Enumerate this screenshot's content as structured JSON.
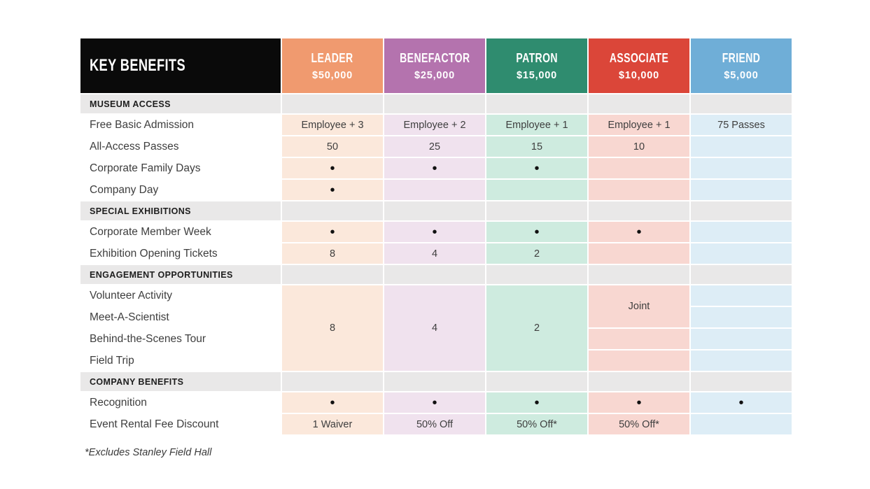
{
  "table": {
    "corner_label": "KEY BENEFITS",
    "corner_bg": "#0a0a0a",
    "section_bg": "#e9e8e8",
    "tiers": [
      {
        "name": "LEADER",
        "price": "$50,000",
        "color": "#F09A6F",
        "tint": "#FBE8DB"
      },
      {
        "name": "BENEFACTOR",
        "price": "$25,000",
        "color": "#B473AE",
        "tint": "#F0E2EE"
      },
      {
        "name": "PATRON",
        "price": "$15,000",
        "color": "#2F8C6F",
        "tint": "#CEEBDF"
      },
      {
        "name": "ASSOCIATE",
        "price": "$10,000",
        "color": "#DB4639",
        "tint": "#F8D7D1"
      },
      {
        "name": "FRIEND",
        "price": "$5,000",
        "color": "#6FAED7",
        "tint": "#DDEDF6"
      }
    ],
    "sections": [
      {
        "title": "MUSEUM ACCESS",
        "rows": [
          {
            "label": "Free Basic Admission",
            "cells": [
              "Employee + 3",
              "Employee + 2",
              "Employee + 1",
              "Employee + 1",
              "75 Passes"
            ]
          },
          {
            "label": "All-Access Passes",
            "cells": [
              "50",
              "25",
              "15",
              "10",
              ""
            ]
          },
          {
            "label": "Corporate Family Days",
            "cells": [
              "•",
              "•",
              "•",
              "",
              ""
            ]
          },
          {
            "label": "Company Day",
            "cells": [
              "•",
              "",
              "",
              "",
              ""
            ]
          }
        ]
      },
      {
        "title": "SPECIAL EXHIBITIONS",
        "rows": [
          {
            "label": "Corporate Member Week",
            "cells": [
              "•",
              "•",
              "•",
              "•",
              ""
            ]
          },
          {
            "label": "Exhibition Opening Tickets",
            "cells": [
              "8",
              "4",
              "2",
              "",
              ""
            ]
          }
        ]
      },
      {
        "title": "ENGAGEMENT OPPORTUNITIES",
        "rows": [
          {
            "label": "Volunteer Activity",
            "cells_spanned": [
              {
                "col": 1,
                "text": "8",
                "rowspan": 4
              },
              {
                "col": 2,
                "text": "4",
                "rowspan": 4
              },
              {
                "col": 3,
                "text": "2",
                "rowspan": 4
              },
              {
                "col": 4,
                "text": "Joint",
                "rowspan": 2
              },
              {
                "col": 5,
                "text": "",
                "rowspan": 1
              }
            ]
          },
          {
            "label": "Meet-A-Scientist",
            "cells_spanned": [
              {
                "col": 5,
                "text": "",
                "rowspan": 1
              }
            ]
          },
          {
            "label": "Behind-the-Scenes Tour",
            "cells_spanned": [
              {
                "col": 4,
                "text": "",
                "rowspan": 1
              },
              {
                "col": 5,
                "text": "",
                "rowspan": 1
              }
            ]
          },
          {
            "label": "Field Trip",
            "cells_spanned": [
              {
                "col": 4,
                "text": "",
                "rowspan": 1
              },
              {
                "col": 5,
                "text": "",
                "rowspan": 1
              }
            ]
          }
        ]
      },
      {
        "title": "COMPANY BENEFITS",
        "rows": [
          {
            "label": "Recognition",
            "cells": [
              "•",
              "•",
              "•",
              "•",
              "•"
            ]
          },
          {
            "label": "Event Rental Fee Discount",
            "cells": [
              "1 Waiver",
              "50% Off",
              "50% Off*",
              "50% Off*",
              ""
            ]
          }
        ]
      }
    ]
  },
  "footnote": "*Excludes Stanley Field Hall"
}
